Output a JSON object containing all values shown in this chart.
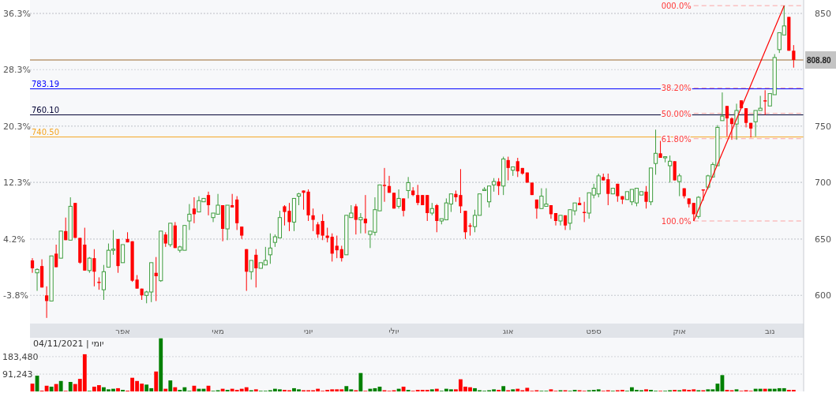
{
  "chart_data": [
    {
      "type": "candlestick",
      "categories": [
        null,
        null,
        null,
        null,
        null,
        null,
        null,
        null,
        null,
        null,
        null,
        null,
        null,
        null,
        null,
        null,
        null,
        null,
        null,
        "אפר",
        null,
        null,
        null,
        null,
        null,
        null,
        null,
        null,
        null,
        null,
        null,
        null,
        null,
        null,
        null,
        null,
        null,
        null,
        null,
        "מאי",
        null,
        null,
        null,
        null,
        null,
        null,
        null,
        null,
        null,
        null,
        null,
        null,
        null,
        null,
        null,
        null,
        null,
        null,
        "יוני",
        null,
        null,
        null,
        null,
        null,
        null,
        null,
        null,
        null,
        null,
        null,
        null,
        null,
        null,
        null,
        null,
        null,
        "יולי",
        null,
        null,
        null,
        null,
        null,
        null,
        null,
        null,
        null,
        null,
        null,
        null,
        null,
        null,
        null,
        null,
        null,
        null,
        null,
        null,
        null,
        null,
        null,
        "אוג",
        null,
        null,
        null,
        null,
        null,
        null,
        null,
        null,
        null,
        null,
        null,
        null,
        null,
        null,
        null,
        null,
        null,
        "ספט",
        null,
        null,
        null,
        null,
        null,
        null,
        null,
        null,
        null,
        null,
        null,
        null,
        null,
        null,
        null,
        null,
        null,
        "אוק",
        null,
        null,
        null,
        null,
        null,
        null,
        null,
        null,
        null,
        null,
        null,
        null,
        null,
        null,
        null,
        null,
        null,
        null,
        "נוב",
        null,
        null,
        null,
        null,
        null
      ],
      "ohlc": [
        [
          631,
          633,
          620,
          624
        ],
        [
          620,
          624,
          604,
          623
        ],
        [
          626,
          632,
          607,
          607
        ],
        [
          600,
          608,
          580,
          595
        ],
        [
          595,
          635,
          595,
          635
        ],
        [
          637,
          645,
          625,
          625
        ],
        [
          633,
          657,
          633,
          657
        ],
        [
          657,
          669,
          649,
          649
        ],
        [
          649,
          687,
          649,
          679
        ],
        [
          682,
          682,
          651,
          651
        ],
        [
          651,
          651,
          628,
          629
        ],
        [
          645,
          660,
          622,
          622
        ],
        [
          622,
          634,
          620,
          633
        ],
        [
          633,
          641,
          608,
          621
        ],
        [
          612,
          616,
          605,
          611
        ],
        [
          605,
          627,
          596,
          621
        ],
        [
          625,
          646,
          625,
          640
        ],
        [
          640,
          658,
          636,
          641
        ],
        [
          650,
          650,
          620,
          626
        ],
        [
          629,
          645,
          629,
          645
        ],
        [
          650,
          656,
          647,
          647
        ],
        [
          648,
          648,
          612,
          613
        ],
        [
          614,
          618,
          606,
          606
        ],
        [
          606,
          606,
          596,
          600
        ],
        [
          600,
          604,
          593,
          603
        ],
        [
          603,
          629,
          594,
          629
        ],
        [
          620,
          634,
          595,
          617
        ],
        [
          613,
          657,
          612,
          657
        ],
        [
          654,
          656,
          643,
          646
        ],
        [
          645,
          664,
          643,
          664
        ],
        [
          662,
          665,
          642,
          642
        ],
        [
          640,
          644,
          638,
          643
        ],
        [
          640,
          662,
          640,
          662
        ],
        [
          666,
          681,
          658,
          672
        ],
        [
          677,
          687,
          664,
          672
        ],
        [
          674,
          688,
          674,
          684
        ],
        [
          683,
          686,
          683,
          686
        ],
        [
          689,
          692,
          671,
          680
        ],
        [
          669,
          673,
          665,
          673
        ],
        [
          672,
          690,
          672,
          680
        ],
        [
          680,
          680,
          648,
          659
        ],
        [
          659,
          680,
          649,
          680
        ],
        [
          680,
          690,
          678,
          678
        ],
        [
          685,
          688,
          658,
          664
        ],
        [
          661,
          661,
          650,
          653
        ],
        [
          641,
          641,
          604,
          621
        ],
        [
          621,
          631,
          614,
          631
        ],
        [
          636,
          641,
          607,
          624
        ],
        [
          624,
          629,
          624,
          629
        ],
        [
          627,
          643,
          627,
          631
        ],
        [
          636,
          655,
          628,
          642
        ],
        [
          647,
          654,
          643,
          652
        ],
        [
          651,
          675,
          651,
          669
        ],
        [
          679,
          680,
          662,
          674
        ],
        [
          675,
          682,
          657,
          665
        ],
        [
          665,
          686,
          657,
          686
        ],
        [
          688,
          691,
          680,
          690
        ],
        [
          693,
          693,
          676,
          691
        ],
        [
          692,
          694,
          666,
          671
        ],
        [
          671,
          677,
          657,
          667
        ],
        [
          663,
          665,
          651,
          654
        ],
        [
          666,
          672,
          649,
          653
        ],
        [
          653,
          660,
          647,
          651
        ],
        [
          652,
          655,
          630,
          637
        ],
        [
          644,
          653,
          633,
          640
        ],
        [
          641,
          644,
          630,
          633
        ],
        [
          636,
          671,
          636,
          671
        ],
        [
          669,
          680,
          669,
          673
        ],
        [
          679,
          681,
          654,
          667
        ],
        [
          667,
          673,
          655,
          669
        ],
        [
          668,
          689,
          655,
          664
        ],
        [
          654,
          657,
          642,
          657
        ],
        [
          656,
          687,
          653,
          676
        ],
        [
          675,
          698,
          675,
          698
        ],
        [
          698,
          713,
          683,
          697
        ],
        [
          697,
          706,
          691,
          691
        ],
        [
          691,
          691,
          677,
          677
        ],
        [
          679,
          694,
          677,
          686
        ],
        [
          686,
          686,
          670,
          675
        ],
        [
          693,
          705,
          686,
          700
        ],
        [
          693,
          696,
          688,
          689
        ],
        [
          689,
          698,
          680,
          682
        ],
        [
          689,
          689,
          680,
          680
        ],
        [
          689,
          689,
          666,
          673
        ],
        [
          673,
          682,
          671,
          677
        ],
        [
          680,
          681,
          656,
          666
        ],
        [
          666,
          668,
          663,
          668
        ],
        [
          667,
          686,
          667,
          682
        ],
        [
          681,
          690,
          674,
          690
        ],
        [
          690,
          693,
          683,
          687
        ],
        [
          689,
          712,
          673,
          679
        ],
        [
          675,
          675,
          650,
          656
        ],
        [
          662,
          664,
          653,
          661
        ],
        [
          661,
          676,
          656,
          671
        ],
        [
          671,
          690,
          671,
          690
        ],
        [
          693,
          696,
          693,
          694
        ],
        [
          683,
          697,
          678,
          697
        ],
        [
          698,
          704,
          692,
          701
        ],
        [
          701,
          704,
          689,
          697
        ],
        [
          697,
          723,
          689,
          721
        ],
        [
          720,
          723,
          702,
          713
        ],
        [
          711,
          714,
          706,
          714
        ],
        [
          719,
          722,
          705,
          710
        ],
        [
          713,
          713,
          707,
          708
        ],
        [
          709,
          709,
          700,
          700
        ],
        [
          700,
          700,
          689,
          689
        ],
        [
          685,
          685,
          668,
          677
        ],
        [
          677,
          695,
          677,
          688
        ],
        [
          679,
          695,
          679,
          681
        ],
        [
          680,
          680,
          668,
          672
        ],
        [
          673,
          673,
          662,
          666
        ],
        [
          666,
          671,
          662,
          671
        ],
        [
          671,
          671,
          658,
          662
        ],
        [
          664,
          676,
          658,
          676
        ],
        [
          675,
          682,
          671,
          682
        ],
        [
          682,
          687,
          680,
          680
        ],
        [
          674,
          683,
          665,
          673
        ],
        [
          673,
          691,
          668,
          691
        ],
        [
          689,
          699,
          686,
          695
        ],
        [
          690,
          708,
          687,
          706
        ],
        [
          705,
          708,
          702,
          702
        ],
        [
          703,
          708,
          680,
          690
        ],
        [
          690,
          695,
          690,
          695
        ],
        [
          699,
          699,
          683,
          688
        ],
        [
          688,
          688,
          681,
          685
        ],
        [
          685,
          692,
          685,
          692
        ],
        [
          683,
          694,
          680,
          694
        ],
        [
          682,
          695,
          679,
          695
        ],
        [
          689,
          692,
          689,
          692
        ],
        [
          692,
          697,
          677,
          683
        ],
        [
          683,
          713,
          680,
          713
        ],
        [
          717,
          747,
          707,
          726
        ],
        [
          726,
          737,
          722,
          722
        ],
        [
          722,
          723,
          718,
          723
        ],
        [
          715,
          724,
          700,
          719
        ],
        [
          719,
          719,
          702,
          702
        ],
        [
          701,
          708,
          688,
          706
        ],
        [
          695,
          695,
          686,
          688
        ],
        [
          686,
          686,
          678,
          681
        ],
        [
          682,
          682,
          666,
          672
        ],
        [
          670,
          688,
          668,
          687
        ],
        [
          694,
          694,
          684,
          693
        ],
        [
          696,
          707,
          694,
          706
        ],
        [
          705,
          718,
          705,
          716
        ],
        [
          715,
          751,
          715,
          749
        ],
        [
          755,
          780,
          755,
          759
        ],
        [
          768,
          768,
          741,
          757
        ],
        [
          757,
          758,
          738,
          752
        ],
        [
          752,
          770,
          738,
          764
        ],
        [
          773,
          773,
          766,
          766
        ],
        [
          766,
          766,
          749,
          753
        ],
        [
          753,
          753,
          740,
          748
        ],
        [
          754,
          764,
          741,
          764
        ],
        [
          764,
          777,
          764,
          766
        ],
        [
          773,
          782,
          760,
          772
        ],
        [
          768,
          779,
          768,
          779
        ],
        [
          778,
          814,
          778,
          811
        ],
        [
          818,
          833,
          815,
          833
        ],
        [
          831,
          857,
          831,
          839
        ],
        [
          847,
          847,
          817,
          817
        ],
        [
          817,
          822,
          802,
          808.8
        ]
      ],
      "colors": [
        "#ff0000",
        "#3c9c3c",
        "#ff0000",
        "#ff0000",
        "#3c9c3c",
        "#ff0000",
        "#3c9c3c",
        "#ff0000",
        "#3c9c3c",
        "#ff0000",
        "#ff0000",
        "#ff0000",
        "#3c9c3c",
        "#ff0000",
        "#ff0000",
        "#3c9c3c",
        "#3c9c3c",
        "#3c9c3c",
        "#ff0000",
        "#3c9c3c",
        "#ff0000",
        "#ff0000",
        "#ff0000",
        "#ff0000",
        "#3c9c3c",
        "#3c9c3c",
        "#ff0000",
        "#3c9c3c",
        "#ff0000",
        "#3c9c3c",
        "#ff0000",
        "#3c9c3c",
        "#3c9c3c",
        "#3c9c3c",
        "#ff0000",
        "#3c9c3c",
        "#3c9c3c",
        "#ff0000",
        "#3c9c3c",
        "#3c9c3c",
        "#ff0000",
        "#3c9c3c",
        "#ff0000",
        "#ff0000",
        "#ff0000",
        "#ff0000",
        "#3c9c3c",
        "#ff0000",
        "#3c9c3c",
        "#3c9c3c",
        "#3c9c3c",
        "#3c9c3c",
        "#3c9c3c",
        "#ff0000",
        "#ff0000",
        "#3c9c3c",
        "#3c9c3c",
        "#ff0000",
        "#ff0000",
        "#ff0000",
        "#ff0000",
        "#ff0000",
        "#ff0000",
        "#ff0000",
        "#ff0000",
        "#ff0000",
        "#3c9c3c",
        "#3c9c3c",
        "#ff0000",
        "#3c9c3c",
        "#ff0000",
        "#3c9c3c",
        "#3c9c3c",
        "#3c9c3c",
        "#ff0000",
        "#ff0000",
        "#ff0000",
        "#3c9c3c",
        "#ff0000",
        "#3c9c3c",
        "#ff0000",
        "#ff0000",
        "#ff0000",
        "#ff0000",
        "#3c9c3c",
        "#ff0000",
        "#3c9c3c",
        "#3c9c3c",
        "#3c9c3c",
        "#ff0000",
        "#ff0000",
        "#ff0000",
        "#ff0000",
        "#3c9c3c",
        "#3c9c3c",
        "#3c9c3c",
        "#3c9c3c",
        "#3c9c3c",
        "#ff0000",
        "#3c9c3c",
        "#ff0000",
        "#3c9c3c",
        "#ff0000",
        "#ff0000",
        "#ff0000",
        "#ff0000",
        "#ff0000",
        "#3c9c3c",
        "#3c9c3c",
        "#ff0000",
        "#ff0000",
        "#3c9c3c",
        "#ff0000",
        "#3c9c3c",
        "#3c9c3c",
        "#ff0000",
        "#ff0000",
        "#3c9c3c",
        "#3c9c3c",
        "#3c9c3c",
        "#ff0000",
        "#ff0000",
        "#3c9c3c",
        "#ff0000",
        "#ff0000",
        "#3c9c3c",
        "#3c9c3c",
        "#3c9c3c",
        "#3c9c3c",
        "#ff0000",
        "#3c9c3c",
        "#3c9c3c",
        "#ff0000",
        "#3c9c3c",
        "#3c9c3c",
        "#ff0000",
        "#3c9c3c",
        "#ff0000",
        "#ff0000",
        "#ff0000",
        "#3c9c3c",
        "#ff0000",
        "#3c9c3c",
        "#3c9c3c",
        "#3c9c3c",
        "#3c9c3c",
        "#ff0000",
        "#ff0000",
        "#3c9c3c",
        "#ff0000",
        "#ff0000",
        "#ff0000",
        "#3c9c3c",
        "#3c9c3c",
        "#ff0000",
        "#3c9c3c",
        "#3c9c3c",
        "#3c9c3c",
        "#3c9c3c",
        "#ff0000",
        "#ff0000"
      ],
      "series": [
        {
          "type": "line",
          "color": "#ff0000",
          "values": [
            null,
            null,
            null,
            null,
            null,
            null,
            null,
            null,
            null,
            null,
            null,
            null,
            null,
            null,
            null,
            null,
            null,
            null,
            null,
            null,
            null,
            null,
            null,
            null,
            null,
            null,
            null,
            null,
            null,
            null,
            null,
            null,
            null,
            null,
            null,
            null,
            null,
            null,
            null,
            null,
            null,
            null,
            null,
            null,
            null,
            null,
            null,
            null,
            null,
            null,
            null,
            null,
            null,
            null,
            null,
            null,
            null,
            null,
            null,
            null,
            null,
            null,
            null,
            null,
            null,
            null,
            null,
            null,
            null,
            null,
            null,
            null,
            null,
            null,
            null,
            null,
            null,
            null,
            null,
            null,
            null,
            null,
            null,
            null,
            null,
            null,
            null,
            null,
            null,
            null,
            null,
            null,
            null,
            null,
            null,
            null,
            null,
            null,
            null,
            null,
            null,
            null,
            null,
            null,
            null,
            null,
            null,
            null,
            null,
            null,
            null,
            null,
            null,
            null,
            null,
            null,
            null,
            null,
            null,
            null,
            null,
            null,
            null,
            null,
            null,
            null,
            null,
            null,
            null,
            null,
            null,
            null,
            null,
            null,
            null,
            null,
            null,
            null,
            null,
            666,
            null,
            null,
            null,
            null,
            null,
            null,
            null,
            null,
            null,
            null,
            null,
            null,
            null,
            null,
            null,
            null,
            null,
            null,
            857,
            null,
            null
          ]
        }
      ],
      "ylim": [
        575,
        862
      ],
      "yticks": [
        600,
        650,
        700,
        750,
        850
      ],
      "y2lim": [
        -7.8,
        38.2
      ],
      "y2ticks": [
        {
          "value": 36.3,
          "label": "36.3%"
        },
        {
          "value": 28.3,
          "label": "28.3%"
        },
        {
          "value": 20.3,
          "label": "20.3%"
        },
        {
          "value": 12.3,
          "label": "12.3%"
        },
        {
          "value": 4.2,
          "label": "4.2%"
        },
        {
          "value": -3.8,
          "label": "-3.8%"
        }
      ],
      "grid": "y",
      "ref_lines": [
        {
          "axis": "y",
          "value": 808.8,
          "label": "808.80",
          "color": "#9c6b30",
          "line_style": "solid"
        },
        {
          "axis": "y",
          "value": 783.19,
          "label": "783.19",
          "color": "#0000ff",
          "line_style": "solid"
        },
        {
          "axis": "y",
          "value": 760.1,
          "label": "760.10",
          "color": "#000033",
          "line_style": "solid"
        },
        {
          "axis": "y",
          "value": 740.5,
          "label": "740.50",
          "color": "#f5a623",
          "line_style": "solid"
        },
        {
          "axis": "y",
          "value": 857,
          "color": "#ff6b6b",
          "line_style": "dashed"
        },
        {
          "axis": "y",
          "value": 784,
          "color": "#ff6b6b",
          "line_style": "dashed"
        },
        {
          "axis": "y",
          "value": 761.5,
          "color": "#ff6b6b",
          "line_style": "dashed"
        },
        {
          "axis": "y",
          "value": 739,
          "color": "#ff6b6b",
          "line_style": "dashed"
        },
        {
          "axis": "y",
          "value": 666,
          "color": "#ff6b6b",
          "line_style": "dashed"
        }
      ],
      "annotations": [
        "000.0%",
        "38.20%",
        "50.00%",
        "61.80%",
        "100.0%"
      ]
    },
    {
      "type": "bar",
      "categories": [
        null,
        null,
        null,
        null,
        null,
        null,
        null,
        null,
        null,
        null,
        null,
        null,
        null,
        null,
        null,
        null,
        null,
        null,
        null,
        null,
        null,
        null,
        null,
        null,
        null,
        null,
        null,
        null,
        null,
        null,
        null,
        null,
        null,
        null,
        null,
        null,
        null,
        null,
        null,
        null,
        null,
        null,
        null,
        null,
        null,
        null,
        null,
        null,
        null,
        null,
        null,
        null,
        null,
        null,
        null,
        null,
        null,
        null,
        null,
        null,
        null,
        null,
        null,
        null,
        null,
        null,
        null,
        null,
        null,
        null,
        null,
        null,
        null,
        null,
        null,
        null,
        null,
        null,
        null,
        null,
        null,
        null,
        null,
        null,
        null,
        null,
        null,
        null,
        null,
        null,
        null,
        null,
        null,
        null,
        null,
        null,
        null,
        null,
        null,
        null,
        null,
        null,
        null,
        null,
        null,
        null,
        null,
        null,
        null,
        null,
        null,
        null,
        null,
        null,
        null,
        null,
        null,
        null,
        null,
        null,
        null,
        null,
        null,
        null,
        null,
        null,
        null,
        null,
        null,
        null,
        null,
        null,
        null,
        null,
        null,
        null,
        null,
        null,
        null,
        null,
        null,
        null,
        null,
        null,
        null,
        null,
        null,
        null,
        null,
        null,
        null,
        null,
        null,
        null,
        null,
        null,
        null,
        null,
        null,
        null,
        null
      ],
      "values": [
        41000,
        83000,
        4000,
        30000,
        25000,
        39000,
        55000,
        3000,
        50000,
        39000,
        66000,
        196000,
        3000,
        25000,
        33000,
        22000,
        11000,
        14000,
        17000,
        8000,
        4000,
        72000,
        55000,
        41000,
        36000,
        17000,
        105000,
        280000,
        14000,
        58000,
        22000,
        8000,
        22000,
        3000,
        30000,
        14000,
        14000,
        30000,
        3000,
        6000,
        14000,
        8000,
        14000,
        8000,
        14000,
        22000,
        6000,
        11000,
        3000,
        3000,
        6000,
        14000,
        11000,
        8000,
        6000,
        17000,
        11000,
        6000,
        6000,
        6000,
        14000,
        3000,
        8000,
        11000,
        11000,
        11000,
        28000,
        11000,
        6000,
        97000,
        3000,
        14000,
        17000,
        25000,
        6000,
        3000,
        6000,
        14000,
        25000,
        8000,
        3000,
        8000,
        8000,
        8000,
        11000,
        14000,
        3000,
        14000,
        11000,
        11000,
        64000,
        25000,
        22000,
        17000,
        6000,
        3000,
        6000,
        11000,
        8000,
        28000,
        6000,
        11000,
        14000,
        6000,
        19000,
        3000,
        6000,
        3000,
        3000,
        11000,
        3000,
        6000,
        6000,
        3000,
        8000,
        6000,
        3000,
        6000,
        8000,
        11000,
        3000,
        6000,
        3000,
        6000,
        8000,
        3000,
        22000,
        8000,
        6000,
        11000,
        8000,
        3000,
        3000,
        3000,
        6000,
        8000,
        6000,
        11000,
        8000,
        11000,
        6000,
        6000,
        11000,
        11000,
        41000,
        86000,
        8000,
        6000,
        11000,
        3000,
        6000,
        3000,
        14000,
        14000,
        14000,
        14000,
        14000,
        17000,
        17000,
        8000,
        8000
      ],
      "colors": [
        "#ff0000",
        "#008000",
        "#ff0000",
        "#ff0000",
        "#008000",
        "#ff0000",
        "#008000",
        "#ff0000",
        "#008000",
        "#ff0000",
        "#ff0000",
        "#ff0000",
        "#008000",
        "#ff0000",
        "#ff0000",
        "#008000",
        "#008000",
        "#008000",
        "#ff0000",
        "#008000",
        "#ff0000",
        "#ff0000",
        "#ff0000",
        "#ff0000",
        "#008000",
        "#008000",
        "#ff0000",
        "#008000",
        "#ff0000",
        "#008000",
        "#ff0000",
        "#008000",
        "#008000",
        "#008000",
        "#ff0000",
        "#008000",
        "#008000",
        "#ff0000",
        "#008000",
        "#008000",
        "#ff0000",
        "#008000",
        "#ff0000",
        "#ff0000",
        "#ff0000",
        "#ff0000",
        "#008000",
        "#ff0000",
        "#008000",
        "#008000",
        "#008000",
        "#008000",
        "#008000",
        "#ff0000",
        "#ff0000",
        "#008000",
        "#008000",
        "#ff0000",
        "#ff0000",
        "#ff0000",
        "#ff0000",
        "#ff0000",
        "#ff0000",
        "#ff0000",
        "#ff0000",
        "#ff0000",
        "#008000",
        "#008000",
        "#ff0000",
        "#008000",
        "#ff0000",
        "#008000",
        "#008000",
        "#008000",
        "#ff0000",
        "#ff0000",
        "#ff0000",
        "#008000",
        "#ff0000",
        "#008000",
        "#ff0000",
        "#ff0000",
        "#ff0000",
        "#ff0000",
        "#008000",
        "#ff0000",
        "#008000",
        "#008000",
        "#008000",
        "#ff0000",
        "#ff0000",
        "#ff0000",
        "#ff0000",
        "#008000",
        "#008000",
        "#008000",
        "#008000",
        "#008000",
        "#ff0000",
        "#008000",
        "#ff0000",
        "#008000",
        "#ff0000",
        "#ff0000",
        "#ff0000",
        "#ff0000",
        "#ff0000",
        "#008000",
        "#008000",
        "#ff0000",
        "#ff0000",
        "#008000",
        "#ff0000",
        "#008000",
        "#008000",
        "#ff0000",
        "#ff0000",
        "#008000",
        "#008000",
        "#008000",
        "#ff0000",
        "#ff0000",
        "#008000",
        "#ff0000",
        "#ff0000",
        "#008000",
        "#008000",
        "#008000",
        "#008000",
        "#ff0000",
        "#008000",
        "#008000",
        "#ff0000",
        "#008000",
        "#008000",
        "#ff0000",
        "#008000",
        "#ff0000",
        "#ff0000",
        "#ff0000",
        "#008000",
        "#ff0000",
        "#008000",
        "#008000",
        "#008000",
        "#008000",
        "#ff0000",
        "#ff0000",
        "#008000",
        "#ff0000",
        "#ff0000",
        "#ff0000",
        "#008000",
        "#008000",
        "#ff0000",
        "#008000",
        "#008000",
        "#008000",
        "#008000",
        "#ff0000",
        "#ff0000"
      ],
      "ylim": [
        0,
        283000
      ],
      "yticks": [
        {
          "value": 91243,
          "label": "91,243"
        },
        {
          "value": 183480,
          "label": "183,480"
        }
      ],
      "tick_labels": "y",
      "grid": "y",
      "annotations": [
        "יומי | 04/11/2021"
      ]
    }
  ]
}
